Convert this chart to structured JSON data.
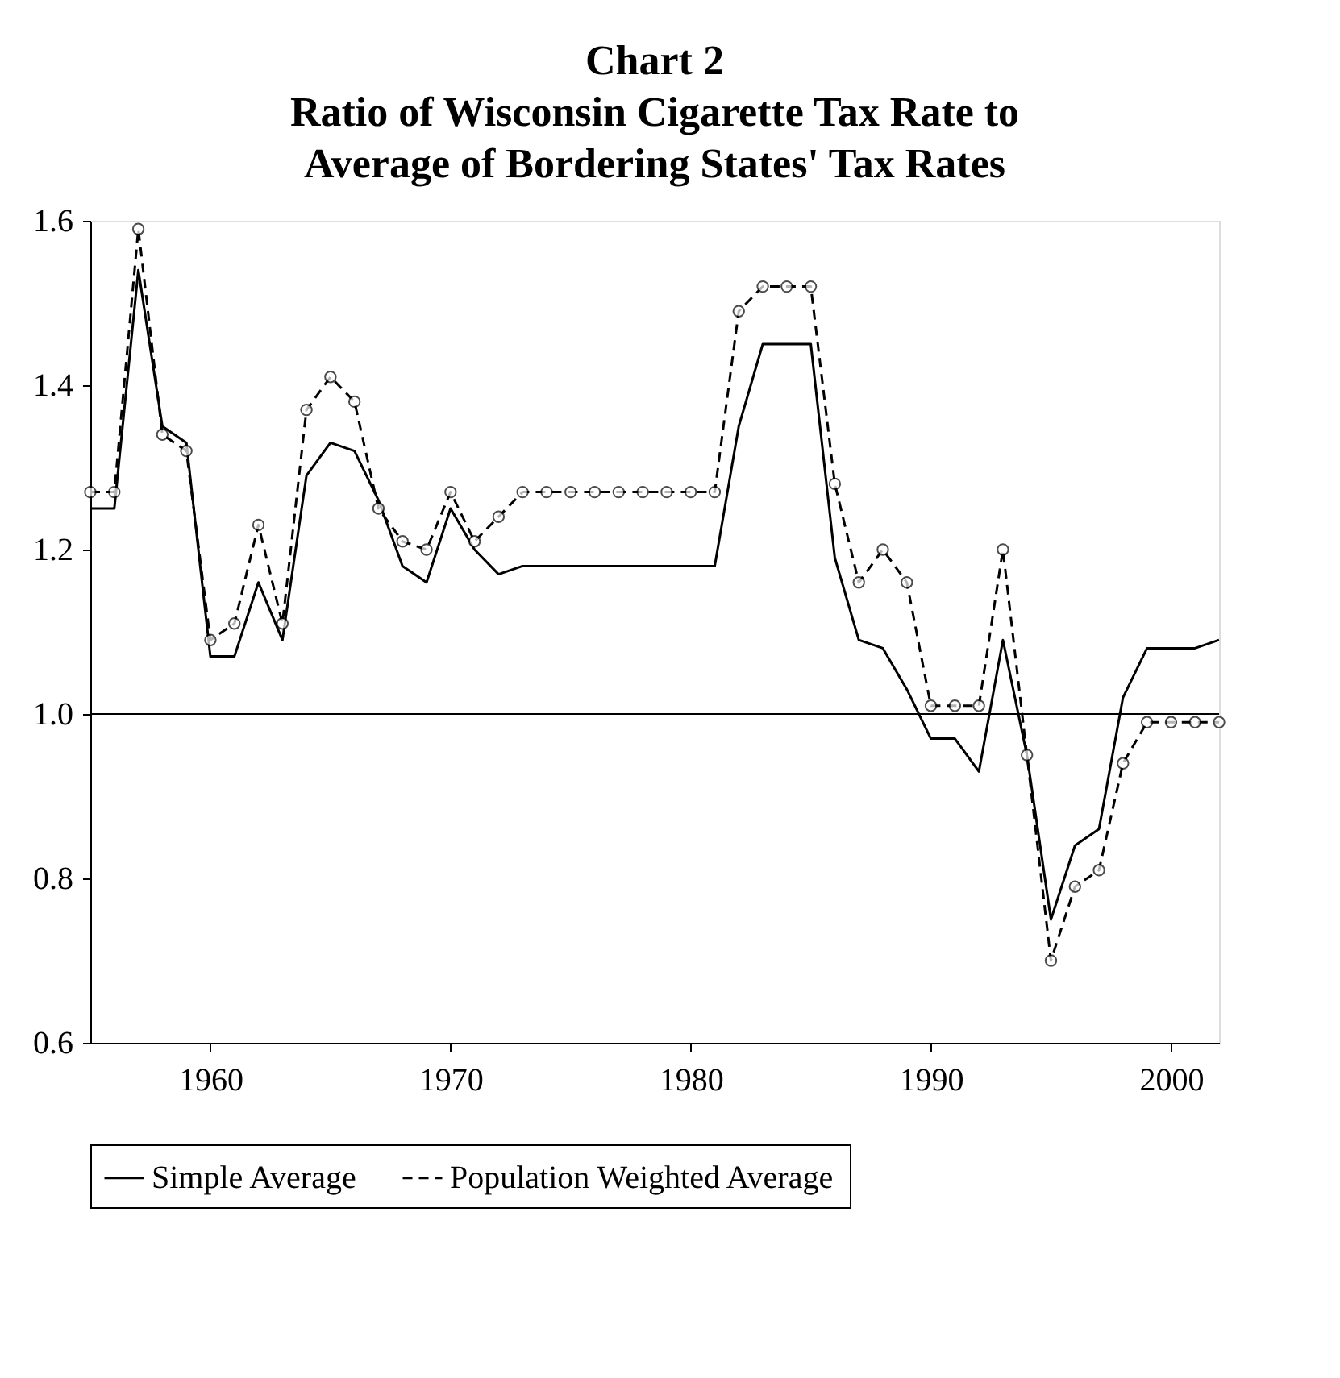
{
  "chart_data": {
    "type": "line",
    "title": "Chart 2\nRatio of Wisconsin Cigarette Tax Rate to\nAverage of Bordering States' Tax Rates",
    "x": [
      1955,
      1956,
      1957,
      1958,
      1959,
      1960,
      1961,
      1962,
      1963,
      1964,
      1965,
      1966,
      1967,
      1968,
      1969,
      1970,
      1971,
      1972,
      1973,
      1974,
      1975,
      1976,
      1977,
      1978,
      1979,
      1980,
      1981,
      1982,
      1983,
      1984,
      1985,
      1986,
      1987,
      1988,
      1989,
      1990,
      1991,
      1992,
      1993,
      1994,
      1995,
      1996,
      1997,
      1998,
      1999,
      2000,
      2001,
      2002
    ],
    "series": [
      {
        "name": "Simple Average",
        "color": "#000000",
        "line_style": "solid",
        "marker": "none",
        "values": [
          1.25,
          1.25,
          1.54,
          1.35,
          1.33,
          1.07,
          1.07,
          1.16,
          1.09,
          1.29,
          1.33,
          1.32,
          1.26,
          1.18,
          1.16,
          1.25,
          1.2,
          1.17,
          1.18,
          1.18,
          1.18,
          1.18,
          1.18,
          1.18,
          1.18,
          1.18,
          1.18,
          1.35,
          1.45,
          1.45,
          1.45,
          1.19,
          1.09,
          1.08,
          1.03,
          0.97,
          0.97,
          0.93,
          1.09,
          0.95,
          0.75,
          0.84,
          0.86,
          1.02,
          1.08,
          1.08,
          1.08,
          1.09
        ]
      },
      {
        "name": "Population Weighted Average",
        "color": "#000000",
        "line_style": "dashed",
        "marker": "circle",
        "values": [
          1.27,
          1.27,
          1.59,
          1.34,
          1.32,
          1.09,
          1.11,
          1.23,
          1.11,
          1.37,
          1.41,
          1.38,
          1.25,
          1.21,
          1.2,
          1.27,
          1.21,
          1.24,
          1.27,
          1.27,
          1.27,
          1.27,
          1.27,
          1.27,
          1.27,
          1.27,
          1.27,
          1.49,
          1.52,
          1.52,
          1.52,
          1.28,
          1.16,
          1.2,
          1.16,
          1.01,
          1.01,
          1.01,
          1.2,
          0.95,
          0.7,
          0.79,
          0.81,
          0.94,
          0.99,
          0.99,
          0.99,
          0.99
        ]
      }
    ],
    "xlim": [
      1955,
      2002
    ],
    "xticks": [
      1960,
      1970,
      1980,
      1990,
      2000
    ],
    "ylim": [
      0.6,
      1.6
    ],
    "yticks": [
      0.6,
      0.8,
      {
        "value": 1.0,
        "label": "1.0"
      },
      1.2,
      1.4,
      1.6
    ],
    "ref_lines": [
      {
        "axis": "y",
        "value": 1.0,
        "color": "#000000"
      }
    ],
    "grid": false,
    "legend": "bottom"
  }
}
